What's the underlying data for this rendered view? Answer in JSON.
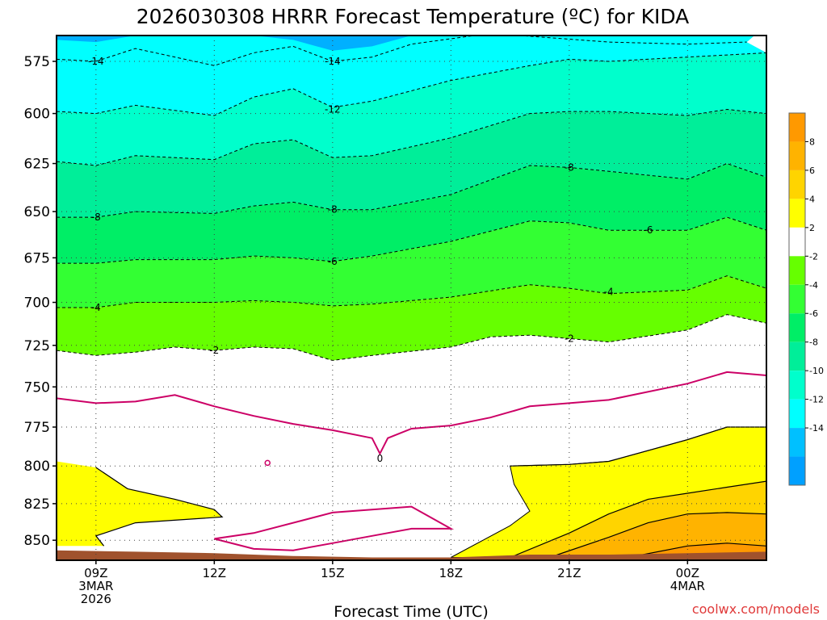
{
  "chart_data": {
    "type": "heatmap",
    "title": "2026030308 HRRR Forecast Temperature (ºC) for KIDA",
    "xlabel": "Forecast Time (UTC)",
    "ylabel": "",
    "credit": "coolwx.com/models",
    "x_ticks": [
      {
        "hour": 9,
        "lines": [
          "09Z",
          "3MAR",
          "2026"
        ]
      },
      {
        "hour": 12,
        "lines": [
          "12Z"
        ]
      },
      {
        "hour": 15,
        "lines": [
          "15Z"
        ]
      },
      {
        "hour": 18,
        "lines": [
          "18Z"
        ]
      },
      {
        "hour": 21,
        "lines": [
          "21Z"
        ]
      },
      {
        "hour": 24,
        "lines": [
          "00Z",
          "4MAR"
        ]
      }
    ],
    "xlim": [
      8,
      26
    ],
    "y_ticks": [
      575,
      600,
      625,
      650,
      675,
      700,
      725,
      750,
      775,
      800,
      825,
      850
    ],
    "ylim": [
      563,
      864
    ],
    "y_scale": "log-pressure (inverted)",
    "colorbar": {
      "labels": [
        "8",
        "6",
        "4",
        "2",
        "-2",
        "-4",
        "-6",
        "-8",
        "-10",
        "-12",
        "-14"
      ],
      "bins": [
        {
          "min": 10,
          "max": 8,
          "color": "#ff9900"
        },
        {
          "min": 8,
          "max": 6,
          "color": "#ffb300"
        },
        {
          "min": 6,
          "max": 4,
          "color": "#ffd400"
        },
        {
          "min": 4,
          "max": 2,
          "color": "#ffff00"
        },
        {
          "min": 2,
          "max": -2,
          "color": "#ffffff"
        },
        {
          "min": -2,
          "max": -4,
          "color": "#66ff00"
        },
        {
          "min": -4,
          "max": -6,
          "color": "#33ff33"
        },
        {
          "min": -6,
          "max": -8,
          "color": "#00ee66"
        },
        {
          "min": -8,
          "max": -10,
          "color": "#00ee99"
        },
        {
          "min": -10,
          "max": -12,
          "color": "#00ffcc"
        },
        {
          "min": -12,
          "max": -14,
          "color": "#00ffff"
        },
        {
          "min": -14,
          "max": -16,
          "color": "#00c0ff"
        },
        {
          "min": -16,
          "max": -18,
          "color": "#00a0ff"
        }
      ]
    },
    "colors": {
      "ground": "#a0522d",
      "freezing_line": "#cc0066",
      "dashed_contour": "#000000",
      "solid_contour": "#000000",
      "grid": "#808080"
    },
    "isotherms": [
      {
        "value": -14,
        "label": "-14",
        "points": [
          [
            8,
            574
          ],
          [
            9,
            575
          ],
          [
            10,
            569
          ],
          [
            12,
            577
          ],
          [
            13,
            571
          ],
          [
            14,
            568
          ],
          [
            15,
            575
          ],
          [
            16,
            573
          ],
          [
            17,
            567
          ],
          [
            19,
            562
          ],
          [
            22,
            566
          ],
          [
            24,
            567
          ],
          [
            25.5,
            566
          ]
        ]
      },
      {
        "value": -12,
        "label": "-12",
        "points": [
          [
            8,
            599
          ],
          [
            9,
            600
          ],
          [
            10,
            596
          ],
          [
            12,
            601
          ],
          [
            13,
            592
          ],
          [
            14,
            588
          ],
          [
            15,
            597
          ],
          [
            16,
            594
          ],
          [
            18,
            584
          ],
          [
            20,
            577
          ],
          [
            21,
            574
          ],
          [
            22,
            575
          ],
          [
            24,
            573
          ],
          [
            25,
            572
          ],
          [
            26,
            571
          ]
        ]
      },
      {
        "value": -10,
        "label": "",
        "points": [
          [
            8,
            624
          ],
          [
            9,
            626
          ],
          [
            10,
            621
          ],
          [
            12,
            623
          ],
          [
            13,
            615
          ],
          [
            14,
            613
          ],
          [
            15,
            622
          ],
          [
            16,
            621
          ],
          [
            18,
            612
          ],
          [
            20,
            600
          ],
          [
            21,
            599
          ],
          [
            22,
            599
          ],
          [
            24,
            601
          ],
          [
            25,
            598
          ],
          [
            26,
            600
          ]
        ]
      },
      {
        "value": -8,
        "label": "-8",
        "points": [
          [
            8,
            653
          ],
          [
            9,
            653
          ],
          [
            10,
            650
          ],
          [
            12,
            651
          ],
          [
            13,
            647
          ],
          [
            14,
            645
          ],
          [
            15,
            649
          ],
          [
            16,
            649
          ],
          [
            18,
            641
          ],
          [
            20,
            626
          ],
          [
            21,
            627
          ],
          [
            22,
            629
          ],
          [
            24,
            633
          ],
          [
            25,
            625
          ],
          [
            26,
            632
          ]
        ]
      },
      {
        "value": -6,
        "label": "-6",
        "points": [
          [
            8,
            678
          ],
          [
            9,
            678
          ],
          [
            10,
            676
          ],
          [
            12,
            676
          ],
          [
            13,
            674
          ],
          [
            14,
            675
          ],
          [
            15,
            677
          ],
          [
            16,
            674
          ],
          [
            18,
            666
          ],
          [
            20,
            655
          ],
          [
            21,
            656
          ],
          [
            22,
            660
          ],
          [
            24,
            660
          ],
          [
            25,
            653
          ],
          [
            26,
            660
          ]
        ]
      },
      {
        "value": -4,
        "label": "-4",
        "points": [
          [
            8,
            703
          ],
          [
            9,
            703
          ],
          [
            10,
            700
          ],
          [
            12,
            700
          ],
          [
            13,
            699
          ],
          [
            14,
            700
          ],
          [
            15,
            702
          ],
          [
            16,
            701
          ],
          [
            18,
            697
          ],
          [
            20,
            690
          ],
          [
            21,
            692
          ],
          [
            22,
            695
          ],
          [
            24,
            693
          ],
          [
            25,
            685
          ],
          [
            26,
            692
          ]
        ]
      },
      {
        "value": -2,
        "label": "-2",
        "points": [
          [
            8,
            728
          ],
          [
            9,
            731
          ],
          [
            10,
            729
          ],
          [
            11,
            726
          ],
          [
            12,
            728
          ],
          [
            13,
            726
          ],
          [
            14,
            727
          ],
          [
            15,
            734
          ],
          [
            16,
            731
          ],
          [
            18,
            726
          ],
          [
            19,
            720
          ],
          [
            20,
            719
          ],
          [
            21,
            721
          ],
          [
            22,
            723
          ],
          [
            24,
            716
          ],
          [
            25,
            707
          ],
          [
            26,
            712
          ]
        ]
      }
    ],
    "freezing_level": {
      "value": 0,
      "label": "0",
      "upper": [
        [
          8,
          757
        ],
        [
          9,
          760
        ],
        [
          10,
          759
        ],
        [
          11,
          755
        ],
        [
          12,
          762
        ],
        [
          13,
          768
        ],
        [
          14,
          773
        ],
        [
          15,
          777
        ],
        [
          16,
          782
        ],
        [
          16.2,
          792
        ],
        [
          16.4,
          782
        ],
        [
          17,
          776
        ],
        [
          18,
          774
        ],
        [
          19,
          769
        ],
        [
          20,
          762
        ],
        [
          21,
          760
        ],
        [
          22,
          758
        ],
        [
          24,
          748
        ],
        [
          25,
          741
        ],
        [
          26,
          743
        ]
      ],
      "pocket": [
        [
          12,
          849
        ],
        [
          13,
          845
        ],
        [
          15,
          831
        ],
        [
          17,
          827
        ],
        [
          18,
          842
        ],
        [
          17,
          842
        ],
        [
          16,
          847
        ],
        [
          15,
          852
        ],
        [
          14,
          857
        ],
        [
          13,
          856
        ],
        [
          12,
          849
        ]
      ]
    },
    "warm_nose_left": [
      [
        8,
        797
      ],
      [
        9,
        801
      ],
      [
        9.8,
        815
      ],
      [
        11,
        822
      ],
      [
        12,
        829
      ],
      [
        12.2,
        834
      ],
      [
        10,
        838
      ],
      [
        9,
        847
      ],
      [
        9.2,
        854
      ],
      [
        8,
        854
      ]
    ],
    "warm_nose_right": [
      [
        18,
        862
      ],
      [
        20,
        848
      ],
      [
        22,
        835
      ],
      [
        23,
        820
      ],
      [
        24,
        809
      ],
      [
        25,
        803
      ],
      [
        26,
        803
      ],
      [
        26,
        862
      ]
    ],
    "warm_region_right": [
      [
        19.5,
        800
      ],
      [
        21,
        799
      ],
      [
        22,
        797
      ],
      [
        23,
        790
      ],
      [
        24,
        783
      ],
      [
        25,
        775
      ],
      [
        26,
        775
      ],
      [
        26,
        862
      ],
      [
        18,
        862
      ],
      [
        19.5,
        840
      ],
      [
        20,
        830
      ],
      [
        19.6,
        812
      ],
      [
        19.5,
        800
      ]
    ],
    "warm_contours": [
      {
        "value": 4,
        "points": [
          [
            9,
            801
          ],
          [
            9.8,
            815
          ],
          [
            11,
            822
          ],
          [
            12,
            829
          ],
          [
            12.2,
            834
          ],
          [
            10,
            838
          ],
          [
            9,
            847
          ],
          [
            9.2,
            854
          ]
        ]
      },
      {
        "value": 4,
        "points": [
          [
            19.5,
            862
          ],
          [
            21,
            845
          ],
          [
            22,
            832
          ],
          [
            23,
            822
          ],
          [
            24,
            818
          ],
          [
            25,
            814
          ],
          [
            26,
            810
          ]
        ]
      },
      {
        "value": 6,
        "points": [
          [
            20.5,
            862
          ],
          [
            22,
            848
          ],
          [
            23,
            838
          ],
          [
            24,
            832
          ],
          [
            25,
            831
          ],
          [
            26,
            832
          ]
        ]
      },
      {
        "value": 8,
        "points": [
          [
            22.5,
            862
          ],
          [
            24,
            854
          ],
          [
            25,
            852
          ],
          [
            26,
            854
          ]
        ]
      },
      {
        "value": 2,
        "points": [
          [
            19.5,
            800
          ],
          [
            21,
            799
          ],
          [
            22,
            797
          ],
          [
            23,
            790
          ],
          [
            24,
            783
          ],
          [
            25,
            775
          ],
          [
            26,
            775
          ]
        ]
      }
    ],
    "ground": [
      [
        8,
        857
      ],
      [
        10,
        858
      ],
      [
        12,
        859
      ],
      [
        14,
        861
      ],
      [
        16,
        862
      ],
      [
        18,
        862
      ],
      [
        20,
        860
      ],
      [
        22,
        860
      ],
      [
        24,
        859
      ],
      [
        26,
        858
      ]
    ]
  }
}
